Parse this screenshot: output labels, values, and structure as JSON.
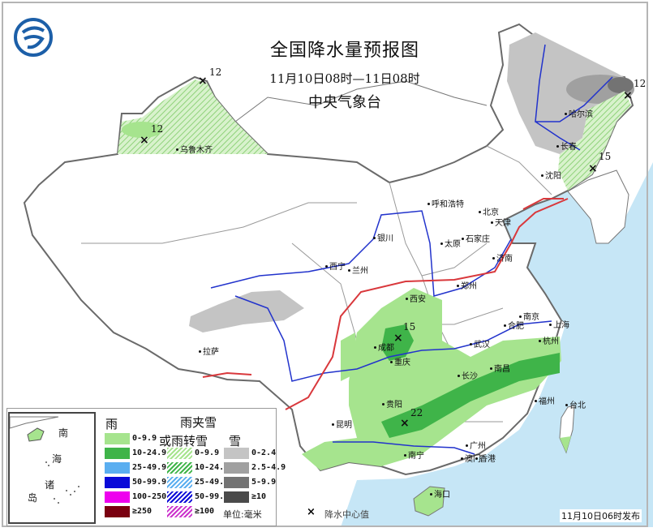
{
  "header": {
    "title": "全国降水量预报图",
    "period": "11月10日08时—11日08时",
    "issuer": "中央气象台",
    "logo_icon": "cma-logo-icon"
  },
  "colors": {
    "sea": "#c6e6f6",
    "rain_light": "#a6e48e",
    "rain_moderate": "#3fb449",
    "snow_light": "#c4c4c4",
    "snow_moderate": "#a0a0a0",
    "snow_heavy": "#737373",
    "snow_severe": "#4a4a4a",
    "front": "#d9383c",
    "river": "#2233cc",
    "border": "#777777"
  },
  "cities": [
    {
      "name": "乌鲁木齐"
    },
    {
      "name": "哈尔滨"
    },
    {
      "name": "长春"
    },
    {
      "name": "沈阳"
    },
    {
      "name": "呼和浩特"
    },
    {
      "name": "北京"
    },
    {
      "name": "天津"
    },
    {
      "name": "石家庄"
    },
    {
      "name": "太原"
    },
    {
      "name": "银川"
    },
    {
      "name": "济南"
    },
    {
      "name": "西宁"
    },
    {
      "name": "兰州"
    },
    {
      "name": "郑州"
    },
    {
      "name": "西安"
    },
    {
      "name": "成都"
    },
    {
      "name": "重庆"
    },
    {
      "name": "武汉"
    },
    {
      "name": "合肥"
    },
    {
      "name": "南京"
    },
    {
      "name": "上海"
    },
    {
      "name": "杭州"
    },
    {
      "name": "长沙"
    },
    {
      "name": "南昌"
    },
    {
      "name": "福州"
    },
    {
      "name": "台北"
    },
    {
      "name": "贵阳"
    },
    {
      "name": "昆明"
    },
    {
      "name": "南宁"
    },
    {
      "name": "广州"
    },
    {
      "name": "澳门"
    },
    {
      "name": "香港"
    },
    {
      "name": "海口"
    },
    {
      "name": "拉萨"
    }
  ],
  "precip_centers": [
    {
      "value": "12"
    },
    {
      "value": "12"
    },
    {
      "value": "12"
    },
    {
      "value": "15"
    },
    {
      "value": "15"
    },
    {
      "value": "22"
    }
  ],
  "legend": {
    "rain_header": "雨",
    "mixed_header_1": "雨夹雪",
    "mixed_header_2": "或雨转雪",
    "snow_header": "雪",
    "rain": [
      {
        "label": "0-9.9",
        "color": "#a6e48e"
      },
      {
        "label": "10-24.9",
        "color": "#3fb449"
      },
      {
        "label": "25-49.9",
        "color": "#5aaef0"
      },
      {
        "label": "50-99.9",
        "color": "#0a0ad8"
      },
      {
        "label": "100-250",
        "color": "#ee00ee"
      },
      {
        "label": "≥250",
        "color": "#7a0010"
      }
    ],
    "mixed": [
      {
        "label": "0-9.9",
        "color": "#a6e48e"
      },
      {
        "label": "10-24.9",
        "color": "#3fb449"
      },
      {
        "label": "25-49.9",
        "color": "#5aaef0"
      },
      {
        "label": "50-99.9",
        "color": "#0a0ad8"
      },
      {
        "label": "≥100",
        "color": "#cc33cc"
      }
    ],
    "snow": [
      {
        "label": "0-2.4",
        "color": "#c4c4c4"
      },
      {
        "label": "2.5-4.9",
        "color": "#a0a0a0"
      },
      {
        "label": "5-9.9",
        "color": "#737373"
      },
      {
        "label": "≥10",
        "color": "#4a4a4a"
      }
    ],
    "unit": "单位:毫米",
    "center_marker": "×",
    "center_label": "降水中心值"
  },
  "inset": {
    "l1": "南",
    "l2": "海",
    "l3": "诸",
    "l4": "岛"
  },
  "footer": {
    "issued": "11月10日06时发布"
  }
}
